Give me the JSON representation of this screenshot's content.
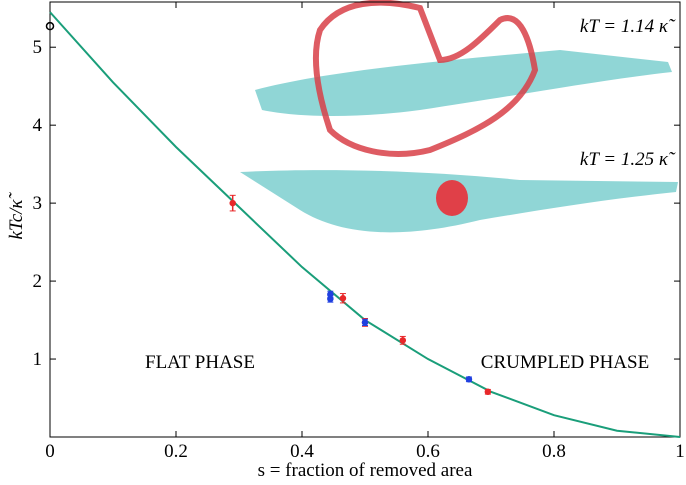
{
  "chart_data": {
    "type": "line",
    "xlabel": "s = fraction of removed area",
    "ylabel": "kTc/κ̃",
    "xlim": [
      0,
      1
    ],
    "ylim": [
      0,
      5.58
    ],
    "xticks": [
      0,
      0.2,
      0.4,
      0.6,
      0.8,
      1
    ],
    "yticks": [
      1,
      2,
      3,
      4,
      5
    ],
    "annotations": [
      "kT = 1.14 κ̃",
      "kT = 1.25 κ̃",
      "FLAT PHASE",
      "CRUMPLED PHASE"
    ],
    "series": [
      {
        "type": "line",
        "color": "#1a9e7a",
        "x": [
          0,
          0.1,
          0.2,
          0.3,
          0.4,
          0.5,
          0.6,
          0.7,
          0.8,
          0.9,
          1
        ],
        "values": [
          5.45,
          4.55,
          3.72,
          2.95,
          2.18,
          1.5,
          1.0,
          0.58,
          0.28,
          0.08,
          0
        ]
      },
      {
        "type": "scatter",
        "color": "#e8282a",
        "x": [
          0.29,
          0.465,
          0.5,
          0.56,
          0.695
        ],
        "values": [
          3.0,
          1.78,
          1.47,
          1.24,
          0.58
        ],
        "errors": [
          0.1,
          0.06,
          0.05,
          0.05,
          0.03
        ]
      },
      {
        "type": "scatter",
        "color": "#2040e0",
        "x": [
          0.445,
          0.445,
          0.5,
          0.665
        ],
        "values": [
          1.83,
          1.77,
          1.47,
          0.74
        ],
        "errors": [
          0.04,
          0.04,
          0.04,
          0.03
        ]
      },
      {
        "type": "scatter",
        "color": "#000000",
        "x": [
          0
        ],
        "values": [
          5.27
        ],
        "errors": [
          0
        ]
      }
    ]
  }
}
